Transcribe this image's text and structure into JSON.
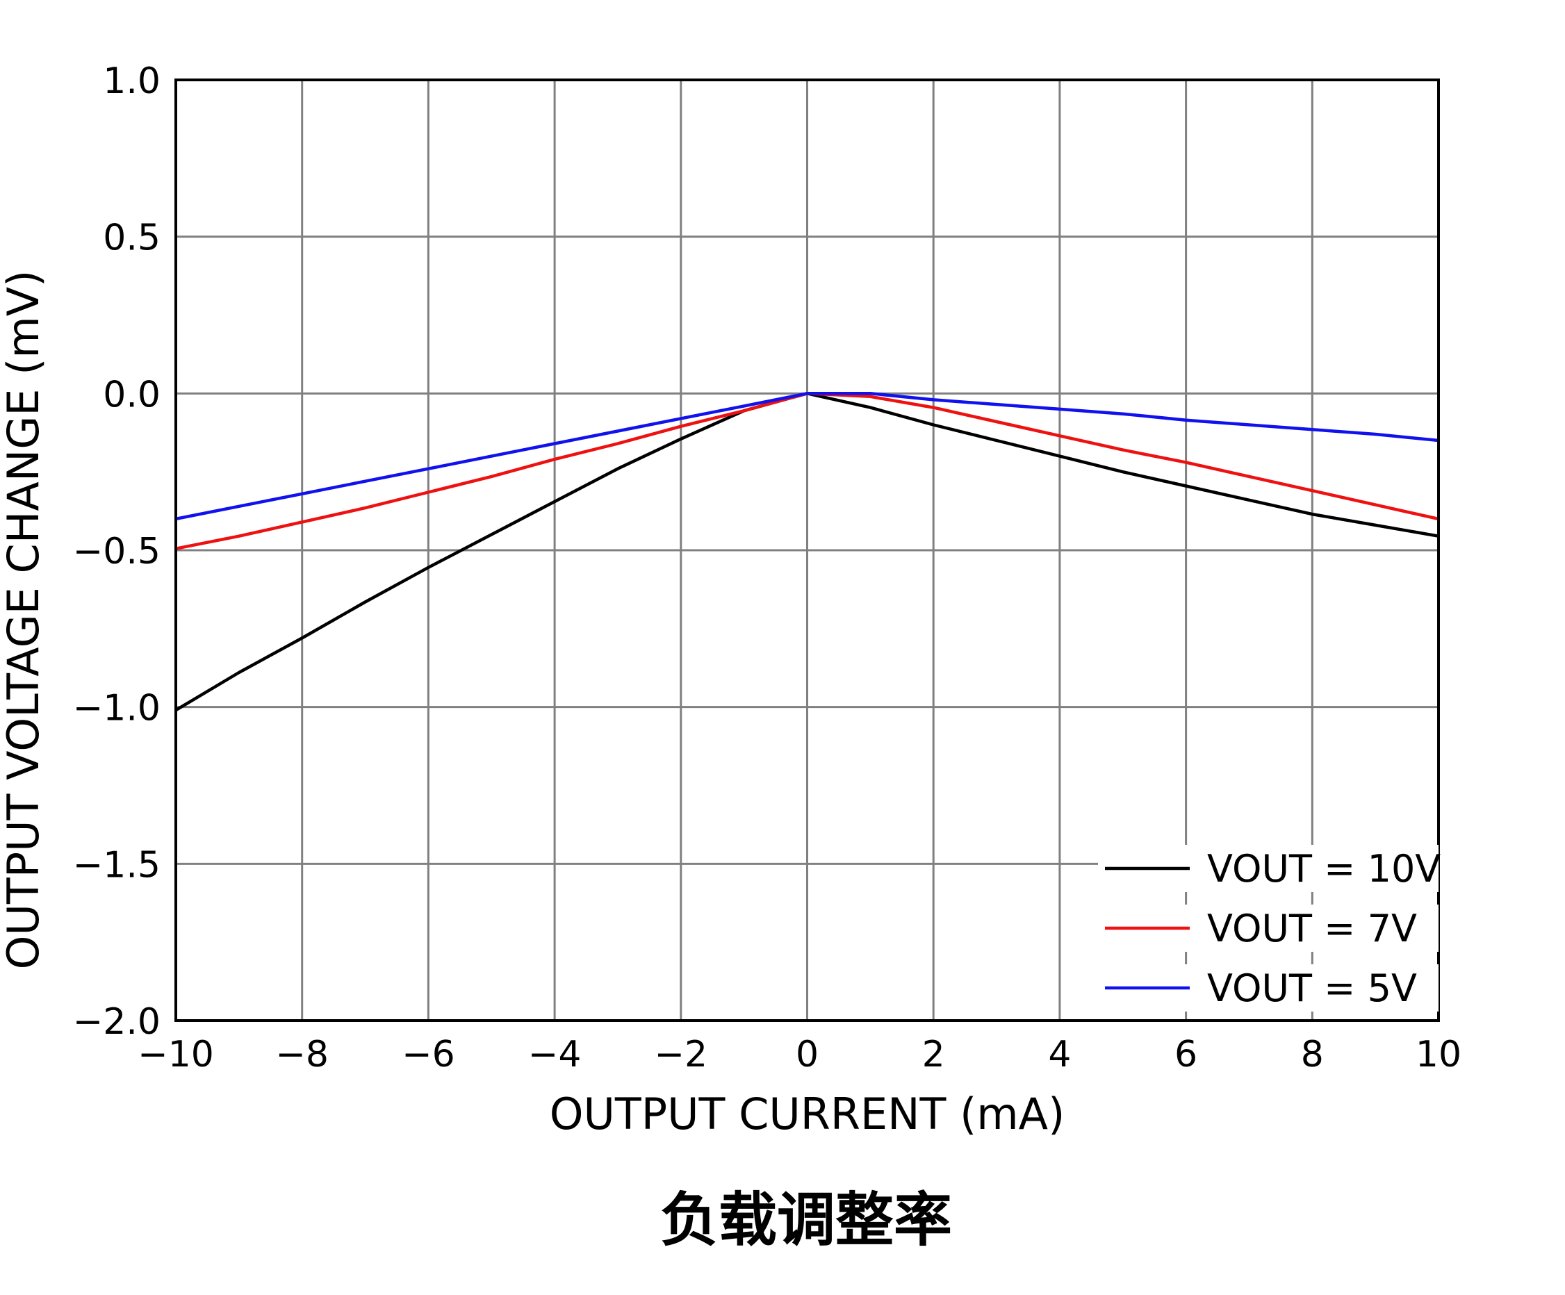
{
  "chart_data": {
    "type": "line",
    "title": "负载调整率",
    "xlabel": "OUTPUT CURRENT (mA)",
    "ylabel": "OUTPUT VOLTAGE CHANGE (mV)",
    "xlim": [
      -10,
      10
    ],
    "ylim": [
      -2.0,
      1.0
    ],
    "x_ticks": [
      -10,
      -8,
      -6,
      -4,
      -2,
      0,
      2,
      4,
      6,
      8,
      10
    ],
    "x_tick_labels": [
      "−10",
      "−8",
      "−6",
      "−4",
      "−2",
      "0",
      "2",
      "4",
      "6",
      "8",
      "10"
    ],
    "y_ticks": [
      1.0,
      0.5,
      0.0,
      -0.5,
      -1.0,
      -1.5,
      -2.0
    ],
    "y_tick_labels": [
      "1.0",
      "0.5",
      "0.0",
      "−0.5",
      "−1.0",
      "−1.5",
      "−2.0"
    ],
    "grid": true,
    "legend_position": "bottom-right",
    "series": [
      {
        "name": "VOUT = 10V",
        "color": "#000000",
        "points": [
          [
            -10,
            -1.01
          ],
          [
            -9,
            -0.89
          ],
          [
            -8,
            -0.78
          ],
          [
            -7,
            -0.665
          ],
          [
            -6,
            -0.555
          ],
          [
            -5,
            -0.45
          ],
          [
            -4,
            -0.345
          ],
          [
            -3,
            -0.24
          ],
          [
            -2,
            -0.145
          ],
          [
            -1,
            -0.055
          ],
          [
            0,
            0.0
          ],
          [
            1,
            -0.045
          ],
          [
            2,
            -0.1
          ],
          [
            3,
            -0.15
          ],
          [
            4,
            -0.2
          ],
          [
            5,
            -0.25
          ],
          [
            6,
            -0.295
          ],
          [
            7,
            -0.34
          ],
          [
            8,
            -0.385
          ],
          [
            9,
            -0.42
          ],
          [
            10,
            -0.455
          ]
        ]
      },
      {
        "name": "VOUT = 7V",
        "color": "#ee1111",
        "points": [
          [
            -10,
            -0.495
          ],
          [
            -9,
            -0.455
          ],
          [
            -8,
            -0.41
          ],
          [
            -7,
            -0.365
          ],
          [
            -6,
            -0.315
          ],
          [
            -5,
            -0.265
          ],
          [
            -4,
            -0.21
          ],
          [
            -3,
            -0.16
          ],
          [
            -2,
            -0.105
          ],
          [
            -1,
            -0.055
          ],
          [
            0,
            0.0
          ],
          [
            1,
            -0.01
          ],
          [
            2,
            -0.045
          ],
          [
            3,
            -0.09
          ],
          [
            4,
            -0.135
          ],
          [
            5,
            -0.18
          ],
          [
            6,
            -0.22
          ],
          [
            7,
            -0.265
          ],
          [
            8,
            -0.31
          ],
          [
            9,
            -0.355
          ],
          [
            10,
            -0.4
          ]
        ]
      },
      {
        "name": "VOUT = 5V",
        "color": "#1111ee",
        "points": [
          [
            -10,
            -0.4
          ],
          [
            -9,
            -0.36
          ],
          [
            -8,
            -0.32
          ],
          [
            -7,
            -0.28
          ],
          [
            -6,
            -0.24
          ],
          [
            -5,
            -0.2
          ],
          [
            -4,
            -0.16
          ],
          [
            -3,
            -0.12
          ],
          [
            -2,
            -0.08
          ],
          [
            -1,
            -0.04
          ],
          [
            0,
            0.0
          ],
          [
            1,
            0.0
          ],
          [
            2,
            -0.02
          ],
          [
            3,
            -0.035
          ],
          [
            4,
            -0.05
          ],
          [
            5,
            -0.065
          ],
          [
            6,
            -0.085
          ],
          [
            7,
            -0.1
          ],
          [
            8,
            -0.115
          ],
          [
            9,
            -0.13
          ],
          [
            10,
            -0.15
          ]
        ]
      }
    ]
  }
}
